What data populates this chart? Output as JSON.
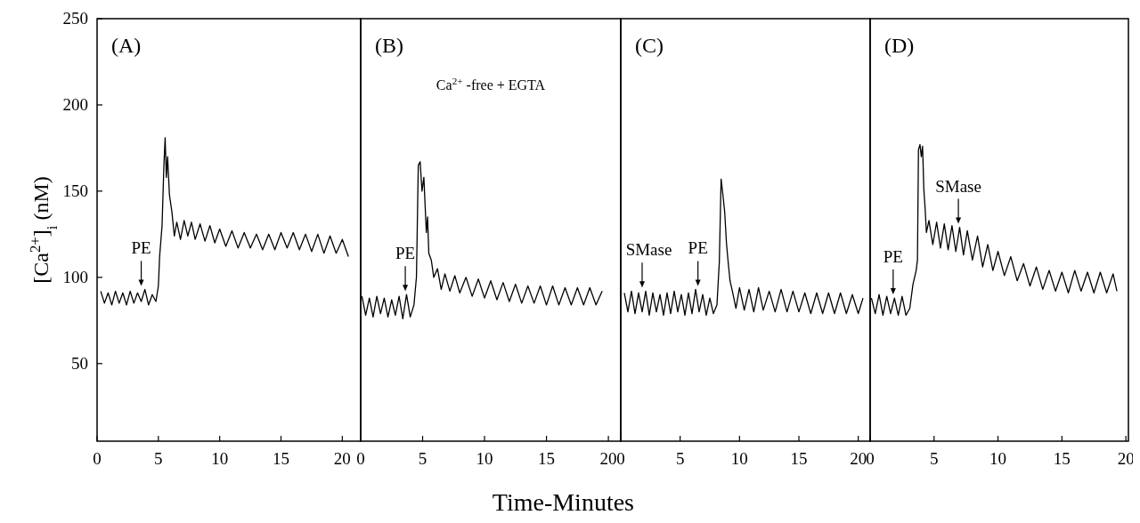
{
  "chart_data": [
    {
      "type": "line",
      "title": "(A)",
      "ylabel": "[Ca$^{2+}$]$_{i}$ (nM)",
      "xlim": [
        0,
        21.5
      ],
      "ylim": [
        5,
        250
      ],
      "xticks": [
        0,
        5,
        10,
        15,
        20
      ],
      "yticks": [
        50,
        100,
        150,
        200,
        250
      ],
      "grid": false,
      "marker": "none",
      "line_style": "solid",
      "annotations": [
        {
          "text": "PE",
          "x": 3.6
        }
      ],
      "series": [
        {
          "color": "#000000",
          "x": [
            0.3,
            0.6,
            0.9,
            1.2,
            1.5,
            1.8,
            2.1,
            2.4,
            2.7,
            3.0,
            3.3,
            3.6,
            3.9,
            4.2,
            4.5,
            4.8,
            5.0,
            5.1,
            5.3,
            5.45,
            5.55,
            5.65,
            5.75,
            5.9,
            6.1,
            6.3,
            6.5,
            6.8,
            7.1,
            7.4,
            7.7,
            8.0,
            8.4,
            8.8,
            9.2,
            9.6,
            10,
            10.5,
            11,
            11.5,
            12,
            12.5,
            13,
            13.5,
            14,
            14.5,
            15,
            15.5,
            16,
            16.5,
            17,
            17.5,
            18,
            18.5,
            19,
            19.5,
            20,
            20.5
          ],
          "values": [
            92,
            85,
            91,
            84,
            92,
            85,
            91,
            84,
            92,
            85,
            91,
            86,
            93,
            84,
            90,
            86,
            95,
            112,
            130,
            165,
            181,
            158,
            170,
            148,
            138,
            124,
            132,
            122,
            133,
            124,
            132,
            122,
            131,
            121,
            130,
            120,
            128,
            118,
            127,
            117,
            126,
            117,
            125,
            116,
            125,
            116,
            126,
            117,
            126,
            116,
            125,
            115,
            125,
            114,
            124,
            114,
            122,
            112
          ]
        }
      ]
    },
    {
      "type": "line",
      "title": "(B)",
      "xlabel": "Time-Minutes",
      "xlim": [
        0,
        21
      ],
      "ylim": [
        5,
        250
      ],
      "xticks": [
        0,
        5,
        10,
        15,
        20
      ],
      "tick_labels": "x",
      "grid": false,
      "marker": "none",
      "line_style": "solid",
      "annotations": [
        "Ca$^{2+}$ -free + EGTA",
        {
          "text": "PE",
          "x": 3.6
        }
      ],
      "series": [
        {
          "color": "#000000",
          "x": [
            0.1,
            0.4,
            0.7,
            1.0,
            1.3,
            1.6,
            1.9,
            2.2,
            2.5,
            2.8,
            3.1,
            3.4,
            3.7,
            4.0,
            4.3,
            4.5,
            4.55,
            4.65,
            4.8,
            4.95,
            5.1,
            5.3,
            5.4,
            5.5,
            5.7,
            5.9,
            6.2,
            6.5,
            6.8,
            7.2,
            7.6,
            8.0,
            8.5,
            9.0,
            9.5,
            10,
            10.5,
            11,
            11.5,
            12,
            12.5,
            13,
            13.5,
            14,
            14.5,
            15,
            15.5,
            16,
            16.5,
            17,
            17.5,
            18,
            18.5,
            19,
            19.5
          ],
          "values": [
            89,
            78,
            88,
            77,
            89,
            79,
            88,
            77,
            87,
            78,
            89,
            76,
            90,
            77,
            84,
            100,
            121,
            165,
            167,
            150,
            158,
            126,
            135,
            114,
            110,
            100,
            105,
            93,
            102,
            92,
            101,
            91,
            100,
            89,
            99,
            88,
            98,
            87,
            97,
            86,
            96,
            85,
            95,
            85,
            95,
            84,
            95,
            84,
            94,
            84,
            94,
            84,
            94,
            84,
            92
          ]
        }
      ]
    },
    {
      "type": "line",
      "title": "(C)",
      "xlim": [
        0,
        21
      ],
      "ylim": [
        5,
        250
      ],
      "xticks": [
        0,
        5,
        10,
        15,
        20
      ],
      "tick_labels": "x",
      "grid": false,
      "marker": "none",
      "line_style": "solid",
      "annotations": [
        {
          "text": "SMase",
          "x": 1.8
        },
        {
          "text": "PE",
          "x": 6.5
        }
      ],
      "series": [
        {
          "color": "#000000",
          "x": [
            0.3,
            0.6,
            0.9,
            1.2,
            1.5,
            1.8,
            2.1,
            2.4,
            2.7,
            3.0,
            3.3,
            3.6,
            3.9,
            4.2,
            4.5,
            4.8,
            5.1,
            5.4,
            5.7,
            6.0,
            6.3,
            6.6,
            6.9,
            7.2,
            7.5,
            7.8,
            8.1,
            8.3,
            8.45,
            8.6,
            8.75,
            8.9,
            9.0,
            9.2,
            9.4,
            9.7,
            10.0,
            10.4,
            10.8,
            11.2,
            11.6,
            12,
            12.5,
            13,
            13.5,
            14,
            14.5,
            15,
            15.5,
            16,
            16.5,
            17,
            17.5,
            18,
            18.5,
            19,
            19.5,
            20,
            20.4
          ],
          "values": [
            91,
            80,
            92,
            79,
            91,
            80,
            92,
            78,
            91,
            80,
            90,
            78,
            91,
            79,
            92,
            80,
            90,
            78,
            91,
            79,
            93,
            80,
            90,
            78,
            88,
            79,
            84,
            109,
            157,
            148,
            138,
            120,
            112,
            98,
            92,
            82,
            94,
            81,
            93,
            80,
            94,
            81,
            92,
            80,
            93,
            80,
            92,
            80,
            91,
            79,
            91,
            79,
            91,
            79,
            91,
            79,
            90,
            79,
            88
          ]
        }
      ]
    },
    {
      "type": "line",
      "title": "(D)",
      "xlim": [
        0,
        20.2
      ],
      "ylim": [
        5,
        250
      ],
      "xticks": [
        0,
        5,
        10,
        15,
        20
      ],
      "tick_labels": "x",
      "grid": false,
      "marker": "none",
      "line_style": "solid",
      "annotations": [
        {
          "text": "PE",
          "x": 1.8
        },
        {
          "text": "SMase",
          "x": 6.9
        }
      ],
      "series": [
        {
          "color": "#000000",
          "x": [
            0.1,
            0.4,
            0.7,
            1.0,
            1.3,
            1.6,
            1.9,
            2.2,
            2.5,
            2.8,
            3.1,
            3.35,
            3.6,
            3.7,
            3.78,
            3.9,
            4.0,
            4.1,
            4.2,
            4.3,
            4.4,
            4.6,
            4.9,
            5.2,
            5.5,
            5.8,
            6.1,
            6.4,
            6.7,
            7.0,
            7.3,
            7.6,
            8.0,
            8.4,
            8.8,
            9.2,
            9.6,
            10,
            10.5,
            11,
            11.5,
            12,
            12.5,
            13,
            13.5,
            14,
            14.5,
            15,
            15.5,
            16,
            16.5,
            17,
            17.5,
            18,
            18.5,
            19,
            19.3
          ],
          "values": [
            88,
            79,
            90,
            78,
            89,
            79,
            88,
            78,
            89,
            78,
            82,
            96,
            104,
            110,
            174,
            177,
            170,
            176,
            151,
            140,
            126,
            133,
            119,
            132,
            117,
            131,
            116,
            130,
            115,
            129,
            113,
            127,
            110,
            124,
            106,
            119,
            104,
            115,
            101,
            112,
            98,
            108,
            95,
            106,
            93,
            104,
            92,
            103,
            91,
            104,
            92,
            103,
            91,
            103,
            91,
            102,
            92
          ]
        }
      ]
    }
  ]
}
